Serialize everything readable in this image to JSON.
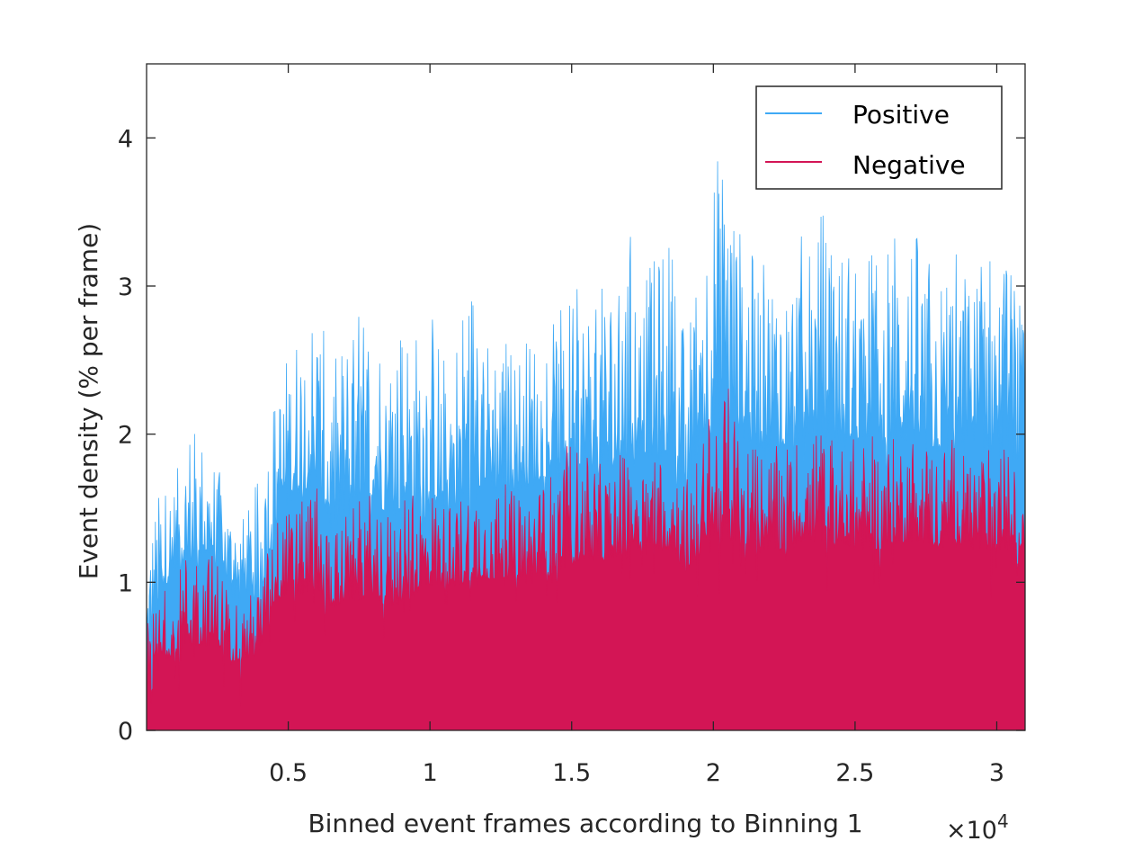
{
  "chart_data": {
    "type": "area",
    "xlabel": "Binned event frames according to Binning 1",
    "ylabel": "Event density (% per frame)",
    "x_exponent_label": "×10",
    "x_exponent_power": "4",
    "xlim": [
      0,
      3.1
    ],
    "ylim": [
      0,
      4.5
    ],
    "x_ticks": [
      0.5,
      1,
      1.5,
      2,
      2.5,
      3
    ],
    "x_tick_labels": [
      "0.5",
      "1",
      "1.5",
      "2",
      "2.5",
      "3"
    ],
    "y_ticks": [
      0,
      1,
      2,
      3,
      4
    ],
    "y_tick_labels": [
      "0",
      "1",
      "2",
      "3",
      "4"
    ],
    "legend_position": "top-right",
    "series": [
      {
        "name": "Positive",
        "color": "#3fa9f5",
        "x": [
          0.0,
          0.05,
          0.1,
          0.15,
          0.2,
          0.25,
          0.3,
          0.35,
          0.4,
          0.45,
          0.5,
          0.55,
          0.6,
          0.65,
          0.7,
          0.75,
          0.8,
          0.85,
          0.9,
          0.95,
          1.0,
          1.05,
          1.1,
          1.15,
          1.2,
          1.25,
          1.3,
          1.35,
          1.4,
          1.45,
          1.5,
          1.55,
          1.6,
          1.65,
          1.7,
          1.75,
          1.8,
          1.85,
          1.9,
          1.95,
          2.0,
          2.05,
          2.1,
          2.15,
          2.2,
          2.25,
          2.3,
          2.35,
          2.4,
          2.45,
          2.5,
          2.55,
          2.6,
          2.65,
          2.7,
          2.75,
          2.8,
          2.85,
          2.9,
          2.95,
          3.0,
          3.05,
          3.1
        ],
        "base": [
          0.5,
          1.1,
          1.25,
          1.3,
          1.35,
          1.3,
          1.15,
          1.1,
          1.1,
          1.5,
          1.7,
          1.8,
          1.85,
          1.5,
          1.6,
          1.65,
          1.7,
          1.65,
          1.65,
          1.6,
          1.75,
          1.6,
          1.7,
          1.8,
          1.85,
          1.75,
          1.8,
          1.8,
          1.9,
          1.85,
          1.9,
          1.95,
          1.9,
          1.9,
          2.0,
          2.05,
          2.0,
          2.05,
          1.65,
          2.1,
          2.2,
          2.25,
          2.15,
          2.1,
          2.05,
          2.1,
          2.15,
          2.15,
          2.2,
          2.1,
          2.15,
          2.15,
          2.1,
          2.1,
          2.15,
          2.1,
          2.05,
          2.1,
          2.05,
          2.05,
          2.05,
          2.0,
          2.0
        ],
        "peak": [
          1.4,
          1.65,
          1.7,
          2.1,
          2.0,
          1.8,
          1.5,
          1.45,
          1.75,
          2.3,
          2.6,
          2.85,
          2.95,
          2.45,
          2.7,
          2.9,
          2.85,
          2.7,
          2.9,
          2.75,
          2.95,
          2.6,
          2.8,
          3.2,
          2.7,
          2.75,
          2.6,
          2.7,
          2.75,
          2.8,
          3.0,
          2.95,
          3.0,
          3.15,
          3.45,
          3.1,
          3.2,
          3.4,
          2.7,
          3.2,
          3.9,
          4.0,
          3.35,
          3.2,
          3.2,
          3.3,
          3.35,
          3.4,
          3.6,
          3.3,
          3.35,
          3.3,
          3.25,
          3.45,
          3.45,
          3.25,
          3.1,
          3.3,
          3.15,
          3.3,
          3.3,
          3.2,
          2.7
        ]
      },
      {
        "name": "Negative",
        "color": "#d31555",
        "x": [
          0.0,
          0.05,
          0.1,
          0.15,
          0.2,
          0.25,
          0.3,
          0.35,
          0.4,
          0.45,
          0.5,
          0.55,
          0.6,
          0.65,
          0.7,
          0.75,
          0.8,
          0.85,
          0.9,
          0.95,
          1.0,
          1.05,
          1.1,
          1.15,
          1.2,
          1.25,
          1.3,
          1.35,
          1.4,
          1.45,
          1.5,
          1.55,
          1.6,
          1.65,
          1.7,
          1.75,
          1.8,
          1.85,
          1.9,
          1.95,
          2.0,
          2.05,
          2.1,
          2.15,
          2.2,
          2.25,
          2.3,
          2.35,
          2.4,
          2.45,
          2.5,
          2.55,
          2.6,
          2.65,
          2.7,
          2.75,
          2.8,
          2.85,
          2.9,
          2.95,
          3.0,
          3.05,
          3.1
        ],
        "base": [
          0.35,
          0.6,
          0.7,
          0.75,
          0.75,
          0.75,
          0.65,
          0.65,
          0.7,
          1.05,
          1.1,
          1.1,
          1.15,
          1.0,
          1.05,
          1.05,
          1.1,
          1.0,
          1.05,
          1.1,
          1.15,
          1.15,
          1.15,
          1.2,
          1.2,
          1.2,
          1.2,
          1.2,
          1.2,
          1.25,
          1.3,
          1.35,
          1.3,
          1.35,
          1.4,
          1.4,
          1.4,
          1.4,
          1.25,
          1.35,
          1.45,
          1.45,
          1.45,
          1.4,
          1.4,
          1.4,
          1.45,
          1.45,
          1.45,
          1.45,
          1.4,
          1.4,
          1.4,
          1.45,
          1.45,
          1.45,
          1.4,
          1.45,
          1.4,
          1.4,
          1.4,
          1.4,
          1.4
        ],
        "peak": [
          0.7,
          0.95,
          1.0,
          1.3,
          1.25,
          1.2,
          0.95,
          0.9,
          1.0,
          1.45,
          1.5,
          1.55,
          1.7,
          1.4,
          1.5,
          1.55,
          1.65,
          1.5,
          1.55,
          1.6,
          1.7,
          1.55,
          1.6,
          1.8,
          1.65,
          1.7,
          1.6,
          1.65,
          1.7,
          1.8,
          2.0,
          1.85,
          1.8,
          1.85,
          1.95,
          1.9,
          1.95,
          2.0,
          1.7,
          1.9,
          2.3,
          2.35,
          2.05,
          1.95,
          1.9,
          1.95,
          2.0,
          2.05,
          2.05,
          1.95,
          2.0,
          2.0,
          1.95,
          2.0,
          2.05,
          2.0,
          1.95,
          2.0,
          1.95,
          1.9,
          1.95,
          1.9,
          1.5
        ]
      }
    ]
  }
}
